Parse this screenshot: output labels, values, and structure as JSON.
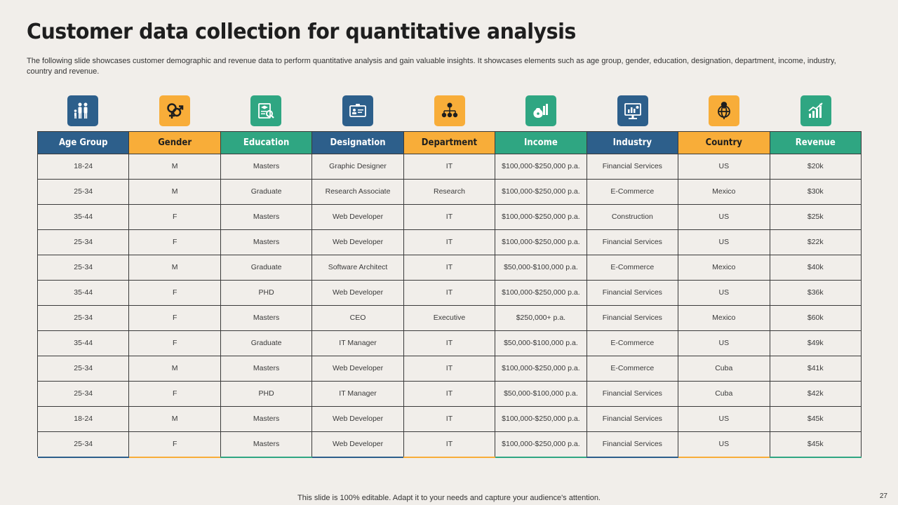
{
  "title": "Customer data collection for quantitative analysis",
  "subtitle": "The following slide showcases customer demographic and revenue data to perform quantitative analysis and gain valuable insights. It showcases elements such as age group, gender, education, designation, department, income, industry, country and revenue.",
  "icons": [
    {
      "name": "family-icon",
      "color": "blue"
    },
    {
      "name": "gender-icon",
      "color": "orange"
    },
    {
      "name": "education-icon",
      "color": "green"
    },
    {
      "name": "id-card-icon",
      "color": "blue"
    },
    {
      "name": "org-chart-icon",
      "color": "orange"
    },
    {
      "name": "money-bag-icon",
      "color": "green"
    },
    {
      "name": "presentation-icon",
      "color": "blue"
    },
    {
      "name": "globe-pin-icon",
      "color": "orange"
    },
    {
      "name": "growth-chart-icon",
      "color": "green"
    }
  ],
  "colors": {
    "blue": "#2d5f8b",
    "orange": "#f8ad39",
    "green": "#2fa682",
    "background": "#f1eeea"
  },
  "table": {
    "headers": [
      "Age Group",
      "Gender",
      "Education",
      "Designation",
      "Department",
      "Income",
      "Industry",
      "Country",
      "Revenue"
    ],
    "rows": [
      [
        "18-24",
        "M",
        "Masters",
        "Graphic Designer",
        "IT",
        "$100,000-$250,000 p.a.",
        "Financial Services",
        "US",
        "$20k"
      ],
      [
        "25-34",
        "M",
        "Graduate",
        "Research Associate",
        "Research",
        "$100,000-$250,000 p.a.",
        "E-Commerce",
        "Mexico",
        "$30k"
      ],
      [
        "35-44",
        "F",
        "Masters",
        "Web Developer",
        "IT",
        "$100,000-$250,000 p.a.",
        "Construction",
        "US",
        "$25k"
      ],
      [
        "25-34",
        "F",
        "Masters",
        "Web Developer",
        "IT",
        "$100,000-$250,000 p.a.",
        "Financial Services",
        "US",
        "$22k"
      ],
      [
        "25-34",
        "M",
        "Graduate",
        "Software Architect",
        "IT",
        "$50,000-$100,000 p.a.",
        "E-Commerce",
        "Mexico",
        "$40k"
      ],
      [
        "35-44",
        "F",
        "PHD",
        "Web Developer",
        "IT",
        "$100,000-$250,000 p.a.",
        "Financial Services",
        "US",
        "$36k"
      ],
      [
        "25-34",
        "F",
        "Masters",
        "CEO",
        "Executive",
        "$250,000+ p.a.",
        "Financial Services",
        "Mexico",
        "$60k"
      ],
      [
        "35-44",
        "F",
        "Graduate",
        "IT Manager",
        "IT",
        "$50,000-$100,000 p.a.",
        "E-Commerce",
        "US",
        "$49k"
      ],
      [
        "25-34",
        "M",
        "Masters",
        "Web Developer",
        "IT",
        "$100,000-$250,000 p.a.",
        "E-Commerce",
        "Cuba",
        "$41k"
      ],
      [
        "25-34",
        "F",
        "PHD",
        "IT Manager",
        "IT",
        "$50,000-$100,000 p.a.",
        "Financial Services",
        "Cuba",
        "$42k"
      ],
      [
        "18-24",
        "M",
        "Masters",
        "Web Developer",
        "IT",
        "$100,000-$250,000 p.a.",
        "Financial Services",
        "US",
        "$45k"
      ],
      [
        "25-34",
        "F",
        "Masters",
        "Web Developer",
        "IT",
        "$100,000-$250,000 p.a.",
        "Financial Services",
        "US",
        "$45k"
      ]
    ]
  },
  "footer": "This slide is 100% editable. Adapt it to your needs and capture your audience's attention.",
  "page_number": "27"
}
